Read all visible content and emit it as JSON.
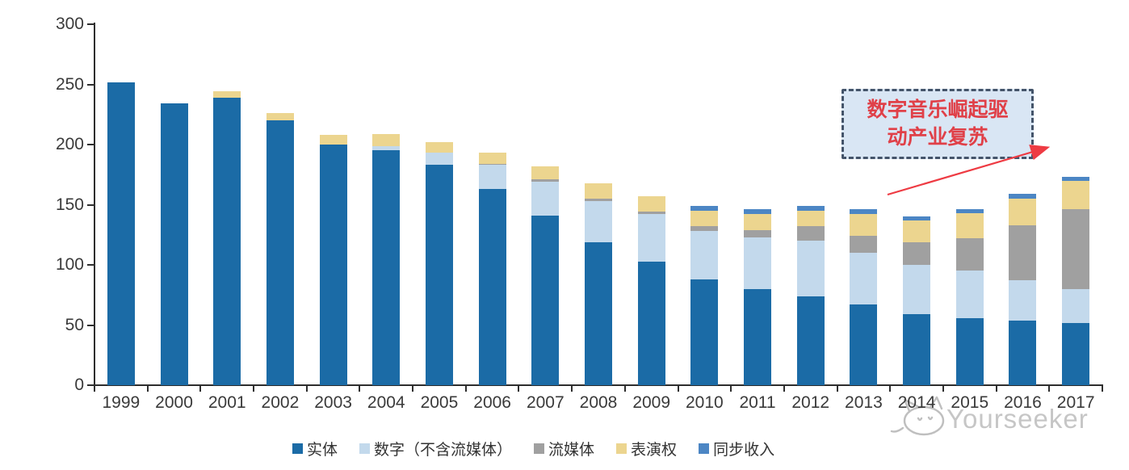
{
  "watermark": {
    "brand": "Yourseeker",
    "logo": "cat-sketch-logo"
  },
  "annotation": {
    "text": "数字音乐崛起驱动产业复苏",
    "line1": "数字音乐崛起驱",
    "line2": "动产业复苏",
    "box_fill": "#d9e6f4",
    "border_color": "#44546a",
    "text_color": "#e04048",
    "arrow_color": "#ee3b43"
  },
  "chart_data": {
    "type": "bar",
    "stacked": true,
    "title": "",
    "xlabel": "",
    "ylabel": "",
    "ylim": [
      0,
      300
    ],
    "yticks": [
      0,
      50,
      100,
      150,
      200,
      250,
      300
    ],
    "grid": false,
    "legend_position": "bottom",
    "categories": [
      "1999",
      "2000",
      "2001",
      "2002",
      "2003",
      "2004",
      "2005",
      "2006",
      "2007",
      "2008",
      "2009",
      "2010",
      "2011",
      "2012",
      "2013",
      "2014",
      "2015",
      "2016",
      "2017"
    ],
    "series": [
      {
        "name": "实体",
        "color": "#1b6ba6",
        "values": [
          252,
          234,
          239,
          220,
          200,
          195,
          183,
          163,
          141,
          119,
          103,
          88,
          80,
          74,
          67,
          59,
          56,
          54,
          52
        ]
      },
      {
        "name": "数字（不含流媒体）",
        "color": "#c3d9ec",
        "values": [
          0,
          0,
          0,
          0,
          0,
          4,
          10,
          20,
          28,
          34,
          39,
          40,
          43,
          46,
          43,
          41,
          39,
          33,
          28
        ]
      },
      {
        "name": "流媒体",
        "color": "#a0a0a0",
        "values": [
          0,
          0,
          0,
          0,
          0,
          0,
          0,
          1,
          2,
          2,
          2,
          4,
          6,
          12,
          14,
          19,
          27,
          46,
          66
        ]
      },
      {
        "name": "表演权",
        "color": "#ecd58f",
        "values": [
          0,
          0,
          5,
          6,
          8,
          10,
          9,
          9,
          11,
          13,
          13,
          13,
          13,
          13,
          18,
          18,
          21,
          22,
          24
        ]
      },
      {
        "name": "同步收入",
        "color": "#4c86c4",
        "values": [
          0,
          0,
          0,
          0,
          0,
          0,
          0,
          0,
          0,
          0,
          0,
          4,
          4,
          4,
          4,
          3,
          3,
          4,
          3
        ]
      }
    ]
  }
}
